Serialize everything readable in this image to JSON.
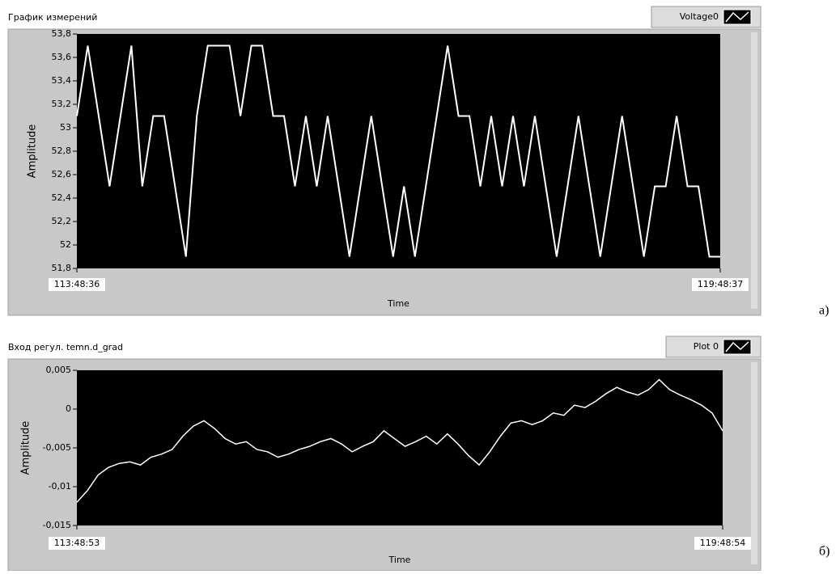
{
  "chart_data": [
    {
      "type": "line",
      "title": "График измерений",
      "xlabel": "Time",
      "ylabel": "Amplitude",
      "xlim": [
        409716,
        431317
      ],
      "xticks": [
        {
          "value": 409716,
          "label": "113:48:36"
        },
        {
          "value": 431317,
          "label": "119:48:37"
        }
      ],
      "ylim": [
        51.8,
        53.8
      ],
      "yticks": [
        {
          "value": 51.8,
          "label": "51,8"
        },
        52,
        {
          "value": 52.2,
          "label": "52,2"
        },
        {
          "value": 52.4,
          "label": "52,4"
        },
        {
          "value": 52.6,
          "label": "52,6"
        },
        {
          "value": 52.8,
          "label": "52,8"
        },
        53,
        {
          "value": 53.2,
          "label": "53,2"
        },
        {
          "value": 53.4,
          "label": "53,4"
        },
        {
          "value": 53.6,
          "label": "53,6"
        },
        {
          "value": 53.8,
          "label": "53,8"
        }
      ],
      "series": [
        {
          "name": "Voltage0",
          "color": "#ffffff",
          "values": [
            53.1,
            53.7,
            53.1,
            52.5,
            53.1,
            53.7,
            52.5,
            53.1,
            53.1,
            52.5,
            51.9,
            53.1,
            53.7,
            53.7,
            53.7,
            53.1,
            53.7,
            53.7,
            53.1,
            53.1,
            52.5,
            53.1,
            52.5,
            53.1,
            52.5,
            51.9,
            52.5,
            53.1,
            52.5,
            51.9,
            52.5,
            51.9,
            52.5,
            53.1,
            53.7,
            53.1,
            53.1,
            52.5,
            53.1,
            52.5,
            53.1,
            52.5,
            53.1,
            52.5,
            51.9,
            52.5,
            53.1,
            52.5,
            51.9,
            52.5,
            53.1,
            52.5,
            51.9,
            52.5,
            52.5,
            53.1,
            52.5,
            52.5,
            51.9,
            51.9
          ]
        }
      ]
    },
    {
      "type": "line",
      "title": "Вход регул. temn.d_grad",
      "xlabel": "Time",
      "ylabel": "Amplitude",
      "xlim": [
        409733,
        431334
      ],
      "xticks": [
        {
          "value": 409733,
          "label": "113:48:53"
        },
        {
          "value": 431334,
          "label": "119:48:54"
        }
      ],
      "ylim": [
        -0.015,
        0.005
      ],
      "yticks": [
        {
          "value": -0.015,
          "label": "-0,015"
        },
        {
          "value": -0.01,
          "label": "-0,01"
        },
        {
          "value": -0.005,
          "label": "-0,005"
        },
        0,
        {
          "value": 0.005,
          "label": "0,005"
        }
      ],
      "series": [
        {
          "name": "Plot 0",
          "color": "#ffffff",
          "values": [
            -0.012,
            -0.0105,
            -0.0085,
            -0.0075,
            -0.007,
            -0.0068,
            -0.0072,
            -0.0062,
            -0.0058,
            -0.0052,
            -0.0035,
            -0.0022,
            -0.0015,
            -0.0025,
            -0.0038,
            -0.0045,
            -0.0042,
            -0.0052,
            -0.0055,
            -0.0062,
            -0.0058,
            -0.0052,
            -0.0048,
            -0.0042,
            -0.0038,
            -0.0045,
            -0.0055,
            -0.0048,
            -0.0042,
            -0.0028,
            -0.0038,
            -0.0048,
            -0.0042,
            -0.0035,
            -0.0045,
            -0.0032,
            -0.0045,
            -0.006,
            -0.0072,
            -0.0055,
            -0.0035,
            -0.0018,
            -0.0015,
            -0.002,
            -0.0015,
            -0.0005,
            -0.0008,
            0.0005,
            0.0002,
            0.001,
            0.002,
            0.0028,
            0.0022,
            0.0018,
            0.0025,
            0.0038,
            0.0025,
            0.0018,
            0.0012,
            0.0005,
            -0.0005,
            -0.0028
          ]
        }
      ]
    }
  ],
  "panel_labels": [
    "а)",
    "б)"
  ]
}
